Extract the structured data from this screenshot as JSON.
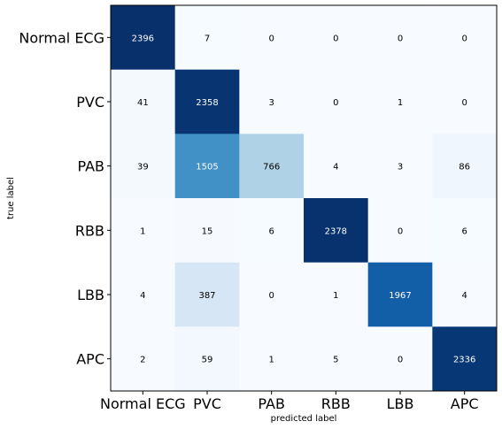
{
  "chart_data": {
    "type": "heatmap",
    "row_labels": [
      "Normal ECG",
      "PVC",
      "PAB",
      "RBB",
      "LBB",
      "APC"
    ],
    "col_labels": [
      "Normal ECG",
      "PVC",
      "PAB",
      "RBB",
      "LBB",
      "APC"
    ],
    "values": [
      [
        2396,
        7,
        0,
        0,
        0,
        0
      ],
      [
        41,
        2358,
        3,
        0,
        1,
        0
      ],
      [
        39,
        1505,
        766,
        4,
        3,
        86
      ],
      [
        1,
        15,
        6,
        2378,
        0,
        6
      ],
      [
        4,
        387,
        0,
        1,
        1967,
        4
      ],
      [
        2,
        59,
        1,
        5,
        0,
        2336
      ]
    ],
    "xlabel": "predicted label",
    "ylabel": "true label",
    "colormap": "Blues",
    "vmin": 0,
    "vmax": 2396,
    "colorbar": false,
    "grid": false
  }
}
